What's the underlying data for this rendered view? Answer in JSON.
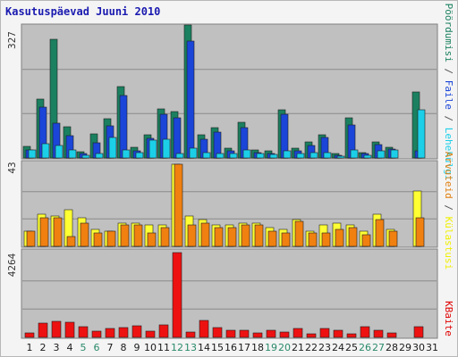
{
  "title": "Kasutuspäevad Juuni 2010",
  "chart_data": [
    {
      "type": "bar",
      "panel": "top",
      "ymax_label": "327",
      "ylim": [
        0,
        327
      ],
      "grid": true,
      "right_labels": [
        {
          "text": "Pöördumisi",
          "color": "#1a8060"
        },
        {
          "text": " / ",
          "color": "#555555"
        },
        {
          "text": "Faile",
          "color": "#1a45d8"
        },
        {
          "text": " / ",
          "color": "#555555"
        },
        {
          "text": "Lehekülgi",
          "color": "#1ccfe8"
        }
      ],
      "series": [
        {
          "name": "Pöördumisi",
          "color": "#1a8060",
          "values": [
            28,
            145,
            291,
            76,
            15,
            59,
            97,
            175,
            27,
            56,
            121,
            115,
            327,
            57,
            74,
            24,
            87,
            19,
            17,
            118,
            24,
            40,
            58,
            10,
            98,
            13,
            40,
            26,
            163
          ]
        },
        {
          "name": "Faile",
          "color": "#1a45d8",
          "values": [
            20,
            124,
            86,
            55,
            10,
            37,
            79,
            153,
            17,
            48,
            108,
            98,
            287,
            45,
            64,
            17,
            74,
            14,
            12,
            107,
            18,
            30,
            50,
            7,
            82,
            10,
            32,
            21,
            17
          ]
        },
        {
          "name": "Lehekülgi",
          "color": "#1ccfe8",
          "values": [
            20,
            35,
            30,
            20,
            7,
            12,
            50,
            19,
            13,
            44,
            45,
            11,
            25,
            14,
            11,
            10,
            19,
            10,
            8,
            17,
            11,
            14,
            14,
            5,
            20,
            7,
            18,
            19,
            118
          ]
        }
      ]
    },
    {
      "type": "bar",
      "panel": "middle",
      "ymax_label": "43",
      "ylim": [
        0,
        43
      ],
      "grid": true,
      "right_labels": [
        {
          "text": "Arvuteid",
          "color": "#e07f10"
        },
        {
          "text": " / ",
          "color": "#555555"
        },
        {
          "text": "Külastusi",
          "color": "#f0f000"
        }
      ],
      "series": [
        {
          "name": "Külastusi",
          "color": "#ffff33",
          "values": [
            8,
            17,
            16,
            19,
            15,
            9,
            8,
            12,
            12,
            11,
            11,
            43,
            16,
            14,
            11,
            11,
            12,
            12,
            10,
            9,
            14,
            8,
            11,
            12,
            11,
            8,
            17,
            9,
            29
          ]
        },
        {
          "name": "Arvuteid",
          "color": "#f08010",
          "values": [
            8,
            15,
            15,
            5,
            12,
            7,
            8,
            11,
            11,
            7,
            10,
            43,
            11,
            12,
            10,
            10,
            11,
            11,
            8,
            7,
            13,
            7,
            7,
            9,
            10,
            6,
            14,
            8,
            15
          ]
        }
      ]
    },
    {
      "type": "bar",
      "panel": "bottom",
      "ymax_label": "4264",
      "ylim": [
        0,
        4264
      ],
      "grid": true,
      "right_labels": [
        {
          "text": "KBaite",
          "color": "#e00000"
        }
      ],
      "series": [
        {
          "name": "KBaite",
          "color": "#ee1111",
          "values": [
            243,
            721,
            796,
            774,
            527,
            320,
            430,
            480,
            580,
            320,
            622,
            4264,
            290,
            853,
            475,
            381,
            371,
            240,
            362,
            253,
            470,
            200,
            452,
            367,
            195,
            537,
            368,
            235,
            550
          ]
        }
      ]
    }
  ],
  "day_labels": [
    "1",
    "2",
    "3",
    "4",
    "5",
    "6",
    "7",
    "8",
    "9",
    "10",
    "11",
    "12",
    "13",
    "14",
    "15",
    "16",
    "17",
    "18",
    "19",
    "20",
    "21",
    "22",
    "23",
    "24",
    "25",
    "26",
    "27",
    "28",
    "29",
    "30",
    "31"
  ],
  "weekend_days": [
    5,
    6,
    12,
    13,
    19,
    20,
    26,
    27
  ],
  "data_days": [
    1,
    2,
    3,
    4,
    5,
    6,
    7,
    8,
    9,
    10,
    11,
    12,
    13,
    14,
    15,
    16,
    17,
    18,
    19,
    20,
    21,
    22,
    23,
    24,
    25,
    26,
    27,
    28,
    30
  ]
}
